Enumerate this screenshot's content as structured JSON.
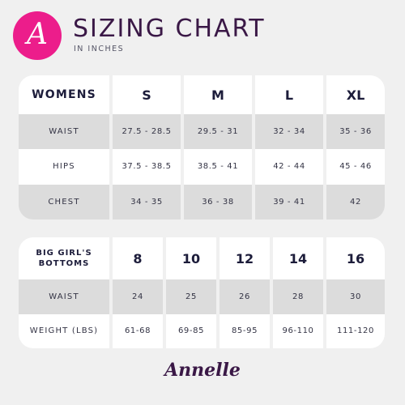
{
  "logo": {
    "letter": "A"
  },
  "header": {
    "title": "SIZING CHART",
    "subtitle": "IN INCHES"
  },
  "womens": {
    "label": "WOMENS",
    "sizes": [
      "S",
      "M",
      "L",
      "XL"
    ],
    "rows": [
      {
        "label": "WAIST",
        "values": [
          "27.5 - 28.5",
          "29.5 - 31",
          "32 - 34",
          "35 - 36"
        ]
      },
      {
        "label": "HIPS",
        "values": [
          "37.5 - 38.5",
          "38.5 - 41",
          "42 - 44",
          "45 - 46"
        ]
      },
      {
        "label": "CHEST",
        "values": [
          "34 - 35",
          "36 - 38",
          "39 - 41",
          "42"
        ]
      }
    ]
  },
  "kids": {
    "label_line1": "BIG GIRL'S",
    "label_line2": "BOTTOMS",
    "sizes": [
      "8",
      "10",
      "12",
      "14",
      "16"
    ],
    "rows": [
      {
        "label": "WAIST",
        "values": [
          "24",
          "25",
          "26",
          "28",
          "30"
        ]
      },
      {
        "label": "WEIGHT (LBS)",
        "values": [
          "61-68",
          "69-85",
          "85-95",
          "96-110",
          "111-120"
        ]
      }
    ]
  },
  "brand": {
    "name": "Annelle"
  },
  "colors": {
    "accent": "#ec1d8b",
    "title": "#3a1846",
    "row_alt": "#dcdcdc",
    "background": "#f0f0f0"
  }
}
